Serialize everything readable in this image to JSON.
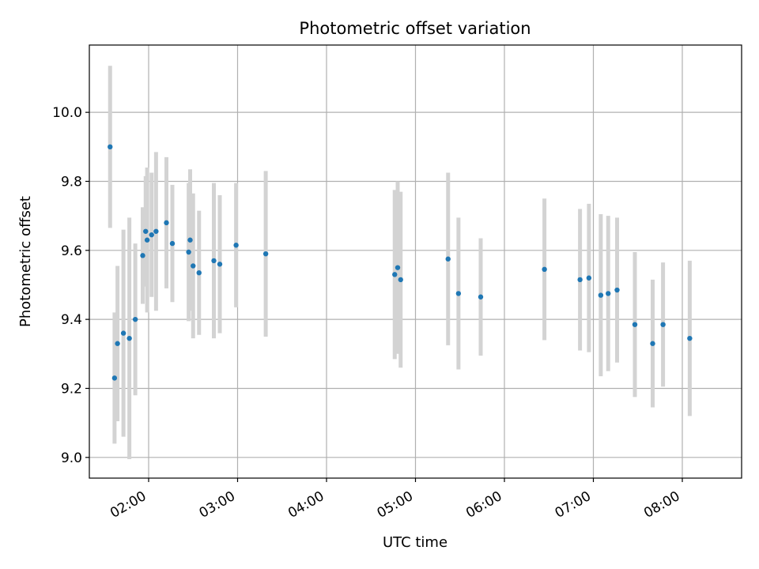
{
  "chart_data": {
    "type": "scatter",
    "title": "Photometric offset variation",
    "xlabel": "UTC time",
    "ylabel": "Photometric offset",
    "x_axis_kind": "time",
    "xlim": [
      "01:20",
      "08:40"
    ],
    "ylim": [
      8.94,
      10.195
    ],
    "x_ticks": [
      "02:00",
      "03:00",
      "04:00",
      "05:00",
      "06:00",
      "07:00",
      "08:00"
    ],
    "y_ticks": [
      9.0,
      9.2,
      9.4,
      9.6,
      9.8,
      10.0
    ],
    "grid": true,
    "marker_color": "#1f77b4",
    "errorbar_color": "#d3d3d3",
    "series": [
      {
        "points": [
          {
            "x": "01:34",
            "y": 9.9,
            "err": 0.235
          },
          {
            "x": "01:37",
            "y": 9.23,
            "err": 0.19
          },
          {
            "x": "01:39",
            "y": 9.33,
            "err": 0.225
          },
          {
            "x": "01:43",
            "y": 9.36,
            "err": 0.3
          },
          {
            "x": "01:47",
            "y": 9.345,
            "err": 0.35
          },
          {
            "x": "01:51",
            "y": 9.4,
            "err": 0.22
          },
          {
            "x": "01:56",
            "y": 9.585,
            "err": 0.14
          },
          {
            "x": "01:58",
            "y": 9.655,
            "err": 0.16
          },
          {
            "x": "01:59",
            "y": 9.63,
            "err": 0.21
          },
          {
            "x": "02:02",
            "y": 9.645,
            "err": 0.18
          },
          {
            "x": "02:05",
            "y": 9.655,
            "err": 0.23
          },
          {
            "x": "02:12",
            "y": 9.68,
            "err": 0.19
          },
          {
            "x": "02:16",
            "y": 9.62,
            "err": 0.17
          },
          {
            "x": "02:27",
            "y": 9.595,
            "err": 0.2
          },
          {
            "x": "02:28",
            "y": 9.63,
            "err": 0.205
          },
          {
            "x": "02:30",
            "y": 9.555,
            "err": 0.21
          },
          {
            "x": "02:34",
            "y": 9.535,
            "err": 0.18
          },
          {
            "x": "02:44",
            "y": 9.57,
            "err": 0.225
          },
          {
            "x": "02:48",
            "y": 9.56,
            "err": 0.2
          },
          {
            "x": "02:59",
            "y": 9.615,
            "err": 0.18
          },
          {
            "x": "03:19",
            "y": 9.59,
            "err": 0.24
          },
          {
            "x": "04:46",
            "y": 9.53,
            "err": 0.245
          },
          {
            "x": "04:48",
            "y": 9.55,
            "err": 0.25
          },
          {
            "x": "04:50",
            "y": 9.515,
            "err": 0.255
          },
          {
            "x": "05:22",
            "y": 9.575,
            "err": 0.25
          },
          {
            "x": "05:29",
            "y": 9.475,
            "err": 0.22
          },
          {
            "x": "05:44",
            "y": 9.465,
            "err": 0.17
          },
          {
            "x": "06:27",
            "y": 9.545,
            "err": 0.205
          },
          {
            "x": "06:51",
            "y": 9.515,
            "err": 0.205
          },
          {
            "x": "06:57",
            "y": 9.52,
            "err": 0.215
          },
          {
            "x": "07:05",
            "y": 9.47,
            "err": 0.235
          },
          {
            "x": "07:10",
            "y": 9.475,
            "err": 0.225
          },
          {
            "x": "07:16",
            "y": 9.485,
            "err": 0.21
          },
          {
            "x": "07:28",
            "y": 9.385,
            "err": 0.21
          },
          {
            "x": "07:40",
            "y": 9.33,
            "err": 0.185
          },
          {
            "x": "07:47",
            "y": 9.385,
            "err": 0.18
          },
          {
            "x": "08:05",
            "y": 9.345,
            "err": 0.225
          }
        ]
      }
    ]
  }
}
